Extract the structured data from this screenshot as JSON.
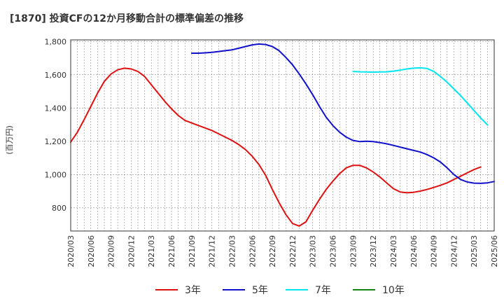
{
  "chart_data": {
    "type": "line",
    "title": "[1870]  投資CFの12か月移動合計の標準偏差の推移",
    "ylabel": "(百万円)",
    "xlabel": "",
    "ylim": [
      660,
      1810
    ],
    "yticks": [
      800,
      1000,
      1200,
      1400,
      1600,
      1800
    ],
    "ytick_labels": [
      "800",
      "1,000",
      "1,200",
      "1,400",
      "1,600",
      "1,800"
    ],
    "x_start": "2020-03",
    "x_end": "2025-06",
    "xtick_labels": [
      "2020/03",
      "2020/06",
      "2020/09",
      "2020/12",
      "2021/03",
      "2021/06",
      "2021/09",
      "2021/12",
      "2022/03",
      "2022/06",
      "2022/09",
      "2022/12",
      "2023/03",
      "2023/06",
      "2023/09",
      "2023/12",
      "2024/03",
      "2024/06",
      "2024/09",
      "2024/12",
      "2025/03",
      "2025/06"
    ],
    "grid": true,
    "legend_position": "bottom",
    "series": [
      {
        "name": "3年",
        "color": "#dd1111",
        "start": "2020-03",
        "values": [
          1195,
          1255,
          1330,
          1410,
          1490,
          1560,
          1605,
          1630,
          1640,
          1635,
          1620,
          1590,
          1540,
          1490,
          1440,
          1395,
          1355,
          1325,
          1310,
          1295,
          1280,
          1265,
          1245,
          1225,
          1205,
          1180,
          1150,
          1110,
          1060,
          995,
          910,
          830,
          760,
          705,
          690,
          715,
          785,
          850,
          910,
          960,
          1005,
          1040,
          1055,
          1055,
          1040,
          1015,
          985,
          950,
          915,
          895,
          890,
          893,
          900,
          910,
          922,
          935,
          950,
          970,
          990,
          1010,
          1030,
          1045
        ]
      },
      {
        "name": "5年",
        "color": "#1111cc",
        "start": "2021-09",
        "values": [
          1730,
          1730,
          1732,
          1735,
          1740,
          1745,
          1750,
          1760,
          1770,
          1780,
          1785,
          1782,
          1770,
          1745,
          1705,
          1660,
          1605,
          1545,
          1480,
          1410,
          1345,
          1295,
          1255,
          1225,
          1205,
          1198,
          1200,
          1198,
          1192,
          1185,
          1175,
          1165,
          1155,
          1145,
          1135,
          1120,
          1100,
          1075,
          1040,
          1000,
          970,
          955,
          948,
          947,
          950,
          958
        ]
      },
      {
        "name": "7年",
        "color": "#00e5ee",
        "start": "2023-09",
        "values": [
          1620,
          1618,
          1617,
          1616,
          1617,
          1618,
          1622,
          1628,
          1635,
          1640,
          1642,
          1638,
          1620,
          1590,
          1555,
          1515,
          1475,
          1430,
          1385,
          1340,
          1298
        ]
      },
      {
        "name": "10年",
        "color": "#118811",
        "start": "2025-03",
        "values": []
      }
    ]
  }
}
